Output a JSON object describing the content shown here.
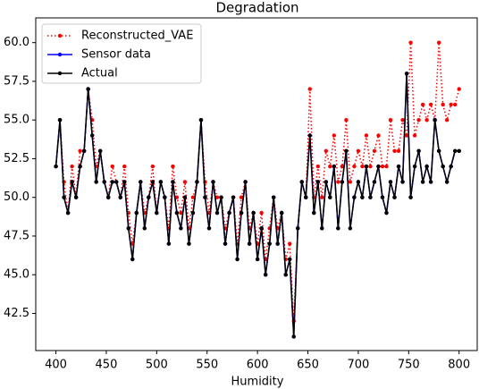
{
  "chart_data": {
    "type": "line",
    "title": "Degradation",
    "x_label": "Humidity",
    "x": [
      400,
      404,
      408,
      412,
      416,
      420,
      424,
      428,
      432,
      436,
      440,
      444,
      448,
      452,
      456,
      460,
      464,
      468,
      472,
      476,
      480,
      484,
      488,
      492,
      496,
      500,
      504,
      508,
      512,
      516,
      520,
      524,
      528,
      532,
      536,
      540,
      544,
      548,
      552,
      556,
      560,
      564,
      568,
      572,
      576,
      580,
      584,
      588,
      592,
      596,
      600,
      604,
      608,
      612,
      616,
      620,
      624,
      628,
      632,
      636,
      640,
      644,
      648,
      652,
      656,
      660,
      664,
      668,
      672,
      676,
      680,
      684,
      688,
      692,
      696,
      700,
      704,
      708,
      712,
      716,
      720,
      724,
      728,
      732,
      736,
      740,
      744,
      748,
      752,
      756,
      760,
      764,
      768,
      772,
      776,
      780,
      784,
      788,
      792,
      796,
      800
    ],
    "series": [
      {
        "name": "Reconstructed_VAE",
        "color": "#ff0000",
        "style": "dotted",
        "values": [
          52,
          55,
          51,
          49,
          52,
          50,
          53,
          53,
          57,
          55,
          52,
          53,
          51,
          50,
          52,
          51,
          50,
          52,
          49,
          47,
          49,
          51,
          49,
          50,
          52,
          49,
          51,
          50,
          48,
          52,
          50,
          49,
          51,
          48,
          50,
          51,
          55,
          51,
          49,
          51,
          50,
          50,
          48,
          49,
          50,
          47,
          50,
          51,
          48,
          49,
          47,
          49,
          46,
          48,
          50,
          48,
          49,
          46,
          47,
          42,
          48,
          51,
          50,
          57,
          50,
          52,
          50,
          53,
          52,
          54,
          51,
          52,
          55,
          51,
          52,
          53,
          52,
          54,
          52,
          53,
          54,
          52,
          52,
          55,
          53,
          53,
          55,
          54,
          60,
          54,
          55,
          56,
          55,
          56,
          55,
          60,
          56,
          55,
          56,
          56,
          57
        ]
      },
      {
        "name": "Sensor data",
        "color": "#0000ff",
        "style": "solid",
        "values": [
          52,
          55,
          50,
          49,
          51,
          50,
          52,
          53,
          57,
          54,
          51,
          53,
          51,
          50,
          51,
          51,
          50,
          51,
          48,
          46,
          49,
          51,
          48,
          50,
          51,
          49,
          51,
          50,
          47,
          51,
          49,
          48,
          50,
          47,
          49,
          51,
          55,
          50,
          48,
          51,
          49,
          50,
          47,
          49,
          50,
          46,
          49,
          51,
          47,
          49,
          46,
          48,
          45,
          47,
          50,
          47,
          49,
          45,
          46,
          41,
          48,
          51,
          50,
          54,
          49,
          51,
          48,
          51,
          50,
          52,
          48,
          51,
          53,
          48,
          50,
          51,
          50,
          52,
          50,
          51,
          52,
          50,
          49,
          51,
          50,
          52,
          51,
          58,
          50,
          52,
          53,
          51,
          52,
          51,
          55,
          53,
          52,
          51,
          52,
          53,
          53
        ]
      },
      {
        "name": "Actual",
        "color": "#000000",
        "style": "solid",
        "values": [
          52,
          55,
          50,
          49,
          51,
          50,
          52,
          53,
          57,
          54,
          51,
          53,
          51,
          50,
          51,
          51,
          50,
          51,
          48,
          46,
          49,
          51,
          48,
          50,
          51,
          49,
          51,
          50,
          47,
          51,
          49,
          48,
          50,
          47,
          49,
          51,
          55,
          50,
          48,
          51,
          49,
          50,
          47,
          49,
          50,
          46,
          49,
          51,
          47,
          49,
          46,
          48,
          45,
          47,
          50,
          47,
          49,
          45,
          46,
          41,
          48,
          51,
          50,
          54,
          49,
          51,
          48,
          51,
          50,
          52,
          48,
          51,
          53,
          48,
          50,
          51,
          50,
          52,
          50,
          51,
          52,
          50,
          49,
          51,
          50,
          52,
          51,
          58,
          50,
          52,
          53,
          51,
          52,
          51,
          55,
          53,
          52,
          51,
          52,
          53,
          53
        ]
      }
    ],
    "xlim": [
      380,
      818
    ],
    "ylim": [
      40.1,
      61.6
    ],
    "xticks": [
      400,
      450,
      500,
      550,
      600,
      650,
      700,
      750,
      800
    ],
    "yticks": [
      {
        "value": 42.5,
        "label": "42.5"
      },
      {
        "value": 45,
        "label": "45.0"
      },
      {
        "value": 47.5,
        "label": "47.5"
      },
      {
        "value": 50,
        "label": "50.0"
      },
      {
        "value": 52.5,
        "label": "52.5"
      },
      {
        "value": 55,
        "label": "55.0"
      },
      {
        "value": 57.5,
        "label": "57.5"
      },
      {
        "value": 60,
        "label": "60.0"
      }
    ],
    "legend": "upper left",
    "grid": false
  }
}
